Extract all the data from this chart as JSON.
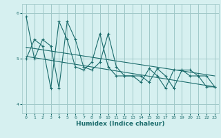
{
  "title": "",
  "xlabel": "Humidex (Indice chaleur)",
  "ylabel": "",
  "bg_color": "#d6f0f0",
  "grid_color": "#a0c8c8",
  "line_color": "#1a6b6b",
  "xlim": [
    -0.5,
    23.5
  ],
  "ylim": [
    3.8,
    6.2
  ],
  "yticks": [
    4,
    5,
    6
  ],
  "xticks": [
    0,
    1,
    2,
    3,
    4,
    5,
    6,
    7,
    8,
    9,
    10,
    11,
    12,
    13,
    14,
    15,
    16,
    17,
    18,
    19,
    20,
    21,
    22,
    23
  ],
  "series1_x": [
    0,
    1,
    2,
    3,
    4,
    5,
    6,
    7,
    8,
    9,
    10,
    11,
    12,
    13,
    14,
    15,
    16,
    17,
    18,
    19,
    20,
    21,
    22,
    23
  ],
  "series1_y": [
    5.92,
    5.0,
    5.42,
    5.28,
    4.35,
    5.82,
    5.42,
    4.82,
    4.75,
    4.92,
    5.55,
    4.82,
    4.62,
    4.62,
    4.62,
    4.48,
    4.78,
    4.62,
    4.35,
    4.75,
    4.75,
    4.62,
    4.62,
    4.38
  ],
  "series2_x": [
    0,
    1,
    2,
    3,
    4,
    5,
    6,
    7,
    8,
    9,
    10,
    11,
    12,
    13,
    14,
    15,
    16,
    17,
    18,
    19,
    20,
    21,
    22,
    23
  ],
  "series2_y": [
    5.0,
    5.42,
    5.28,
    4.35,
    5.82,
    5.42,
    4.82,
    4.75,
    4.92,
    5.55,
    4.82,
    4.62,
    4.62,
    4.62,
    4.48,
    4.78,
    4.62,
    4.35,
    4.75,
    4.75,
    4.62,
    4.62,
    4.38,
    4.38
  ],
  "trend1_x": [
    0,
    23
  ],
  "trend1_y": [
    5.25,
    4.62
  ],
  "trend2_x": [
    0,
    23
  ],
  "trend2_y": [
    5.05,
    4.38
  ]
}
